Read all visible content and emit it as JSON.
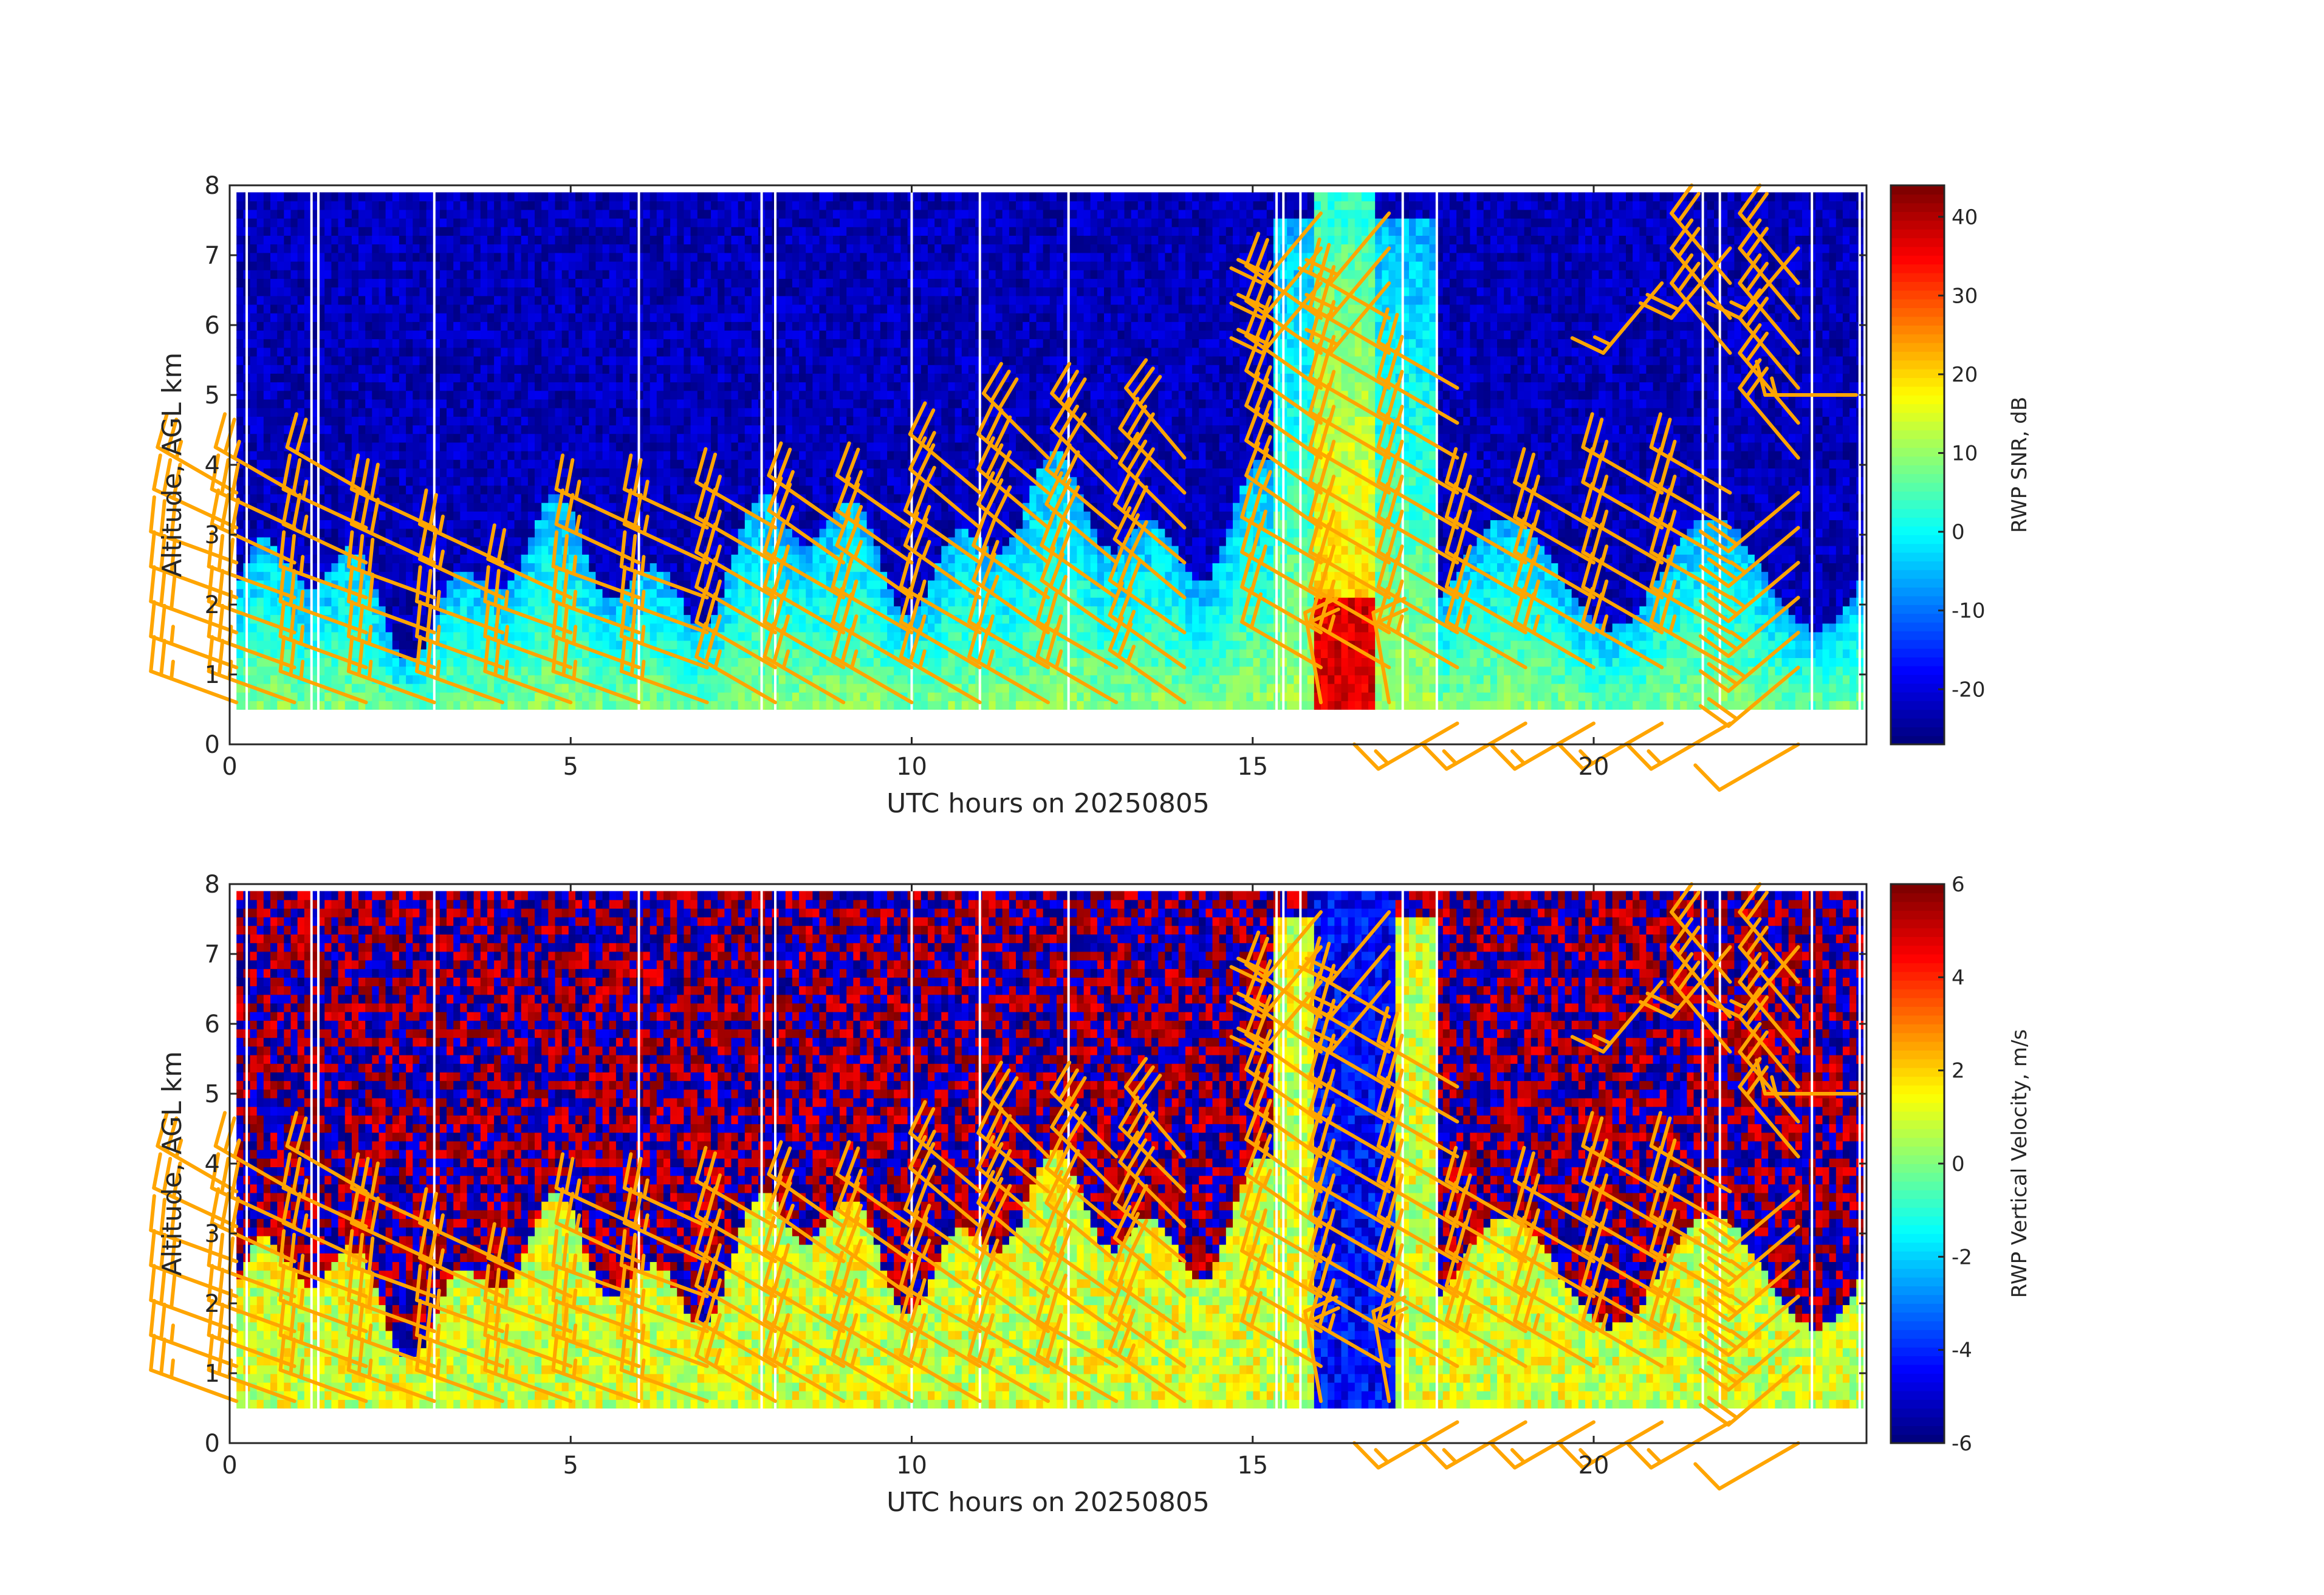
{
  "chart_data": [
    {
      "type": "heatmap",
      "panel": "top",
      "xlabel": "UTC hours on 20250805",
      "ylabel": "Altitude, AGL km",
      "xlim": [
        0,
        24
      ],
      "ylim": [
        0,
        8
      ],
      "xticks": [
        0,
        5,
        10,
        15,
        20
      ],
      "yticks": [
        0,
        1,
        2,
        3,
        4,
        5,
        6,
        7,
        8
      ],
      "data_altitude_range_km": [
        0.5,
        7.9
      ],
      "colorbar": {
        "label": "RWP SNR, dB",
        "range": [
          -27,
          44
        ],
        "ticks": [
          -20,
          -10,
          0,
          10,
          20,
          30,
          40
        ],
        "colormap": "jet"
      },
      "field": "snr",
      "overlay": "wind barbs"
    },
    {
      "type": "heatmap",
      "panel": "bottom",
      "xlabel": "UTC hours on 20250805",
      "ylabel": "Altitude, AGL km",
      "xlim": [
        0,
        24
      ],
      "ylim": [
        0,
        8
      ],
      "xticks": [
        0,
        5,
        10,
        15,
        20
      ],
      "yticks": [
        0,
        1,
        2,
        3,
        4,
        5,
        6,
        7,
        8
      ],
      "data_altitude_range_km": [
        0.5,
        7.9
      ],
      "colorbar": {
        "label": "RWP Vertical Velocity, m/s",
        "range": [
          -6,
          6
        ],
        "ticks": [
          -6,
          -4,
          -2,
          0,
          2,
          4,
          6
        ],
        "colormap": "jet"
      },
      "field": "velocity",
      "overlay": "wind barbs"
    }
  ],
  "data_gaps_hours": [
    0.25,
    1.2,
    1.3,
    3.0,
    6.0,
    7.8,
    8.0,
    10.0,
    11.0,
    12.3,
    15.35,
    15.45,
    15.7,
    17.2,
    17.7,
    21.6,
    21.85,
    23.2,
    23.9
  ],
  "barb_color": "#ffa500",
  "barb_columns": [
    {
      "t": 0.1,
      "levels": [
        {
          "h": 0.6,
          "spd": 25,
          "dir": 290
        },
        {
          "h": 1.1,
          "spd": 25,
          "dir": 290
        },
        {
          "h": 1.6,
          "spd": 30,
          "dir": 290
        },
        {
          "h": 2.1,
          "spd": 30,
          "dir": 290
        },
        {
          "h": 2.6,
          "spd": 30,
          "dir": 290
        },
        {
          "h": 3.1,
          "spd": 30,
          "dir": 295
        },
        {
          "h": 3.6,
          "spd": 25,
          "dir": 300
        }
      ]
    },
    {
      "t": 0.95,
      "levels": [
        {
          "h": 0.6,
          "spd": 25,
          "dir": 290
        },
        {
          "h": 1.1,
          "spd": 25,
          "dir": 290
        },
        {
          "h": 1.6,
          "spd": 25,
          "dir": 290
        },
        {
          "h": 2.1,
          "spd": 30,
          "dir": 290
        },
        {
          "h": 2.6,
          "spd": 30,
          "dir": 295
        },
        {
          "h": 3.1,
          "spd": 30,
          "dir": 295
        },
        {
          "h": 3.6,
          "spd": 25,
          "dir": 300
        }
      ]
    },
    {
      "t": 2.0,
      "levels": [
        {
          "h": 0.6,
          "spd": 25,
          "dir": 290
        },
        {
          "h": 1.1,
          "spd": 25,
          "dir": 290
        },
        {
          "h": 1.6,
          "spd": 25,
          "dir": 290
        },
        {
          "h": 2.1,
          "spd": 25,
          "dir": 290
        },
        {
          "h": 2.6,
          "spd": 25,
          "dir": 295
        },
        {
          "h": 3.1,
          "spd": 25,
          "dir": 295
        },
        {
          "h": 3.6,
          "spd": 20,
          "dir": 300
        }
      ]
    },
    {
      "t": 3.0,
      "levels": [
        {
          "h": 0.6,
          "spd": 25,
          "dir": 290
        },
        {
          "h": 1.1,
          "spd": 25,
          "dir": 290
        },
        {
          "h": 1.6,
          "spd": 30,
          "dir": 290
        },
        {
          "h": 2.1,
          "spd": 30,
          "dir": 290
        },
        {
          "h": 2.6,
          "spd": 30,
          "dir": 295
        },
        {
          "h": 3.1,
          "spd": 30,
          "dir": 295
        }
      ]
    },
    {
      "t": 4.0,
      "levels": [
        {
          "h": 0.6,
          "spd": 25,
          "dir": 290
        },
        {
          "h": 1.1,
          "spd": 25,
          "dir": 290
        },
        {
          "h": 1.6,
          "spd": 25,
          "dir": 290
        },
        {
          "h": 2.1,
          "spd": 25,
          "dir": 295
        },
        {
          "h": 2.6,
          "spd": 25,
          "dir": 295
        }
      ]
    },
    {
      "t": 5.0,
      "levels": [
        {
          "h": 0.6,
          "spd": 25,
          "dir": 290
        },
        {
          "h": 1.1,
          "spd": 25,
          "dir": 290
        },
        {
          "h": 1.6,
          "spd": 25,
          "dir": 290
        },
        {
          "h": 2.1,
          "spd": 20,
          "dir": 295
        }
      ]
    },
    {
      "t": 6.0,
      "levels": [
        {
          "h": 0.6,
          "spd": 25,
          "dir": 290
        },
        {
          "h": 1.1,
          "spd": 25,
          "dir": 290
        },
        {
          "h": 1.6,
          "spd": 25,
          "dir": 290
        },
        {
          "h": 2.1,
          "spd": 25,
          "dir": 290
        },
        {
          "h": 2.6,
          "spd": 25,
          "dir": 295
        },
        {
          "h": 3.1,
          "spd": 25,
          "dir": 295
        }
      ]
    },
    {
      "t": 7.0,
      "levels": [
        {
          "h": 0.6,
          "spd": 25,
          "dir": 290
        },
        {
          "h": 1.1,
          "spd": 25,
          "dir": 290
        },
        {
          "h": 1.6,
          "spd": 25,
          "dir": 290
        },
        {
          "h": 2.1,
          "spd": 25,
          "dir": 290
        },
        {
          "h": 2.6,
          "spd": 25,
          "dir": 295
        },
        {
          "h": 3.1,
          "spd": 25,
          "dir": 295
        }
      ]
    },
    {
      "t": 8.0,
      "levels": [
        {
          "h": 0.6,
          "spd": 25,
          "dir": 300
        },
        {
          "h": 1.1,
          "spd": 25,
          "dir": 300
        },
        {
          "h": 1.6,
          "spd": 25,
          "dir": 300
        },
        {
          "h": 2.1,
          "spd": 25,
          "dir": 300
        },
        {
          "h": 2.6,
          "spd": 25,
          "dir": 300
        },
        {
          "h": 3.1,
          "spd": 25,
          "dir": 300
        }
      ]
    },
    {
      "t": 9.0,
      "levels": [
        {
          "h": 0.6,
          "spd": 25,
          "dir": 300
        },
        {
          "h": 1.1,
          "spd": 25,
          "dir": 300
        },
        {
          "h": 1.6,
          "spd": 25,
          "dir": 300
        },
        {
          "h": 2.1,
          "spd": 25,
          "dir": 300
        },
        {
          "h": 2.6,
          "spd": 25,
          "dir": 305
        },
        {
          "h": 3.1,
          "spd": 25,
          "dir": 305
        }
      ]
    },
    {
      "t": 10.0,
      "levels": [
        {
          "h": 0.6,
          "spd": 25,
          "dir": 300
        },
        {
          "h": 1.1,
          "spd": 25,
          "dir": 300
        },
        {
          "h": 1.6,
          "spd": 25,
          "dir": 300
        },
        {
          "h": 2.1,
          "spd": 25,
          "dir": 305
        },
        {
          "h": 2.6,
          "spd": 25,
          "dir": 305
        },
        {
          "h": 3.1,
          "spd": 25,
          "dir": 305
        }
      ]
    },
    {
      "t": 11.0,
      "levels": [
        {
          "h": 0.6,
          "spd": 25,
          "dir": 300
        },
        {
          "h": 1.1,
          "spd": 25,
          "dir": 300
        },
        {
          "h": 1.6,
          "spd": 25,
          "dir": 300
        },
        {
          "h": 2.1,
          "spd": 25,
          "dir": 305
        },
        {
          "h": 2.6,
          "spd": 25,
          "dir": 305
        },
        {
          "h": 3.1,
          "spd": 25,
          "dir": 310
        },
        {
          "h": 3.6,
          "spd": 25,
          "dir": 310
        }
      ]
    },
    {
      "t": 12.0,
      "levels": [
        {
          "h": 0.6,
          "spd": 25,
          "dir": 300
        },
        {
          "h": 1.1,
          "spd": 25,
          "dir": 300
        },
        {
          "h": 1.6,
          "spd": 25,
          "dir": 305
        },
        {
          "h": 2.1,
          "spd": 25,
          "dir": 305
        },
        {
          "h": 2.6,
          "spd": 30,
          "dir": 310
        },
        {
          "h": 3.1,
          "spd": 30,
          "dir": 310
        },
        {
          "h": 3.6,
          "spd": 30,
          "dir": 310
        },
        {
          "h": 4.1,
          "spd": 30,
          "dir": 315
        }
      ]
    },
    {
      "t": 13.0,
      "levels": [
        {
          "h": 0.6,
          "spd": 25,
          "dir": 300
        },
        {
          "h": 1.1,
          "spd": 25,
          "dir": 300
        },
        {
          "h": 1.6,
          "spd": 25,
          "dir": 305
        },
        {
          "h": 2.1,
          "spd": 30,
          "dir": 305
        },
        {
          "h": 2.6,
          "spd": 30,
          "dir": 310
        },
        {
          "h": 3.1,
          "spd": 30,
          "dir": 310
        },
        {
          "h": 3.6,
          "spd": 30,
          "dir": 315
        },
        {
          "h": 4.1,
          "spd": 30,
          "dir": 315
        }
      ]
    },
    {
      "t": 14.0,
      "levels": [
        {
          "h": 0.6,
          "spd": 25,
          "dir": 305
        },
        {
          "h": 1.1,
          "spd": 25,
          "dir": 305
        },
        {
          "h": 1.6,
          "spd": 30,
          "dir": 305
        },
        {
          "h": 2.1,
          "spd": 30,
          "dir": 310
        },
        {
          "h": 2.6,
          "spd": 30,
          "dir": 310
        },
        {
          "h": 3.1,
          "spd": 30,
          "dir": 315
        },
        {
          "h": 3.6,
          "spd": 30,
          "dir": 315
        },
        {
          "h": 4.1,
          "spd": 30,
          "dir": 320
        }
      ]
    },
    {
      "t": 16.0,
      "levels": [
        {
          "h": 0.6,
          "spd": 20,
          "dir": 350
        },
        {
          "h": 1.1,
          "spd": 20,
          "dir": 300
        },
        {
          "h": 1.6,
          "spd": 20,
          "dir": 300
        },
        {
          "h": 2.1,
          "spd": 25,
          "dir": 300
        },
        {
          "h": 2.6,
          "spd": 25,
          "dir": 300
        },
        {
          "h": 3.1,
          "spd": 25,
          "dir": 305
        },
        {
          "h": 3.6,
          "spd": 25,
          "dir": 305
        },
        {
          "h": 4.1,
          "spd": 25,
          "dir": 305
        },
        {
          "h": 4.6,
          "spd": 25,
          "dir": 305
        },
        {
          "h": 5.1,
          "spd": 25,
          "dir": 305
        },
        {
          "h": 5.6,
          "spd": 25,
          "dir": 305
        },
        {
          "h": 6.1,
          "spd": 25,
          "dir": 305
        },
        {
          "h": 6.6,
          "spd": 20,
          "dir": 220
        },
        {
          "h": 7.1,
          "spd": 20,
          "dir": 220
        },
        {
          "h": 7.6,
          "spd": 20,
          "dir": 220
        }
      ]
    },
    {
      "t": 17.0,
      "levels": [
        {
          "h": 0.6,
          "spd": 20,
          "dir": 350
        },
        {
          "h": 1.1,
          "spd": 25,
          "dir": 300
        },
        {
          "h": 1.6,
          "spd": 25,
          "dir": 300
        },
        {
          "h": 2.1,
          "spd": 25,
          "dir": 300
        },
        {
          "h": 2.6,
          "spd": 25,
          "dir": 300
        },
        {
          "h": 3.1,
          "spd": 25,
          "dir": 300
        },
        {
          "h": 3.6,
          "spd": 25,
          "dir": 300
        },
        {
          "h": 4.1,
          "spd": 25,
          "dir": 300
        },
        {
          "h": 4.6,
          "spd": 25,
          "dir": 300
        },
        {
          "h": 5.1,
          "spd": 25,
          "dir": 300
        },
        {
          "h": 5.6,
          "spd": 25,
          "dir": 300
        },
        {
          "h": 6.1,
          "spd": 25,
          "dir": 300
        },
        {
          "h": 6.6,
          "spd": 20,
          "dir": 220
        },
        {
          "h": 7.1,
          "spd": 20,
          "dir": 220
        },
        {
          "h": 7.6,
          "spd": 20,
          "dir": 220
        }
      ]
    },
    {
      "t": 18.0,
      "levels": [
        {
          "h": 0.3,
          "spd": 15,
          "dir": 240
        },
        {
          "h": 1.1,
          "spd": 25,
          "dir": 300
        },
        {
          "h": 1.6,
          "spd": 25,
          "dir": 300
        },
        {
          "h": 2.1,
          "spd": 25,
          "dir": 300
        },
        {
          "h": 2.6,
          "spd": 25,
          "dir": 300
        },
        {
          "h": 3.1,
          "spd": 25,
          "dir": 300
        },
        {
          "h": 3.6,
          "spd": 25,
          "dir": 300
        },
        {
          "h": 4.1,
          "spd": 25,
          "dir": 300
        },
        {
          "h": 4.6,
          "spd": 25,
          "dir": 300
        },
        {
          "h": 5.1,
          "spd": 25,
          "dir": 300
        }
      ]
    },
    {
      "t": 19.0,
      "levels": [
        {
          "h": 0.3,
          "spd": 15,
          "dir": 240
        },
        {
          "h": 1.1,
          "spd": 25,
          "dir": 300
        },
        {
          "h": 1.6,
          "spd": 25,
          "dir": 300
        },
        {
          "h": 2.1,
          "spd": 25,
          "dir": 300
        },
        {
          "h": 2.6,
          "spd": 25,
          "dir": 300
        },
        {
          "h": 3.1,
          "spd": 25,
          "dir": 300
        }
      ]
    },
    {
      "t": 20.0,
      "levels": [
        {
          "h": 0.3,
          "spd": 15,
          "dir": 240
        },
        {
          "h": 1.1,
          "spd": 25,
          "dir": 300
        },
        {
          "h": 1.6,
          "spd": 25,
          "dir": 300
        },
        {
          "h": 2.1,
          "spd": 25,
          "dir": 300
        },
        {
          "h": 2.6,
          "spd": 25,
          "dir": 300
        },
        {
          "h": 3.1,
          "spd": 25,
          "dir": 300
        }
      ]
    },
    {
      "t": 21.0,
      "levels": [
        {
          "h": 0.3,
          "spd": 15,
          "dir": 240
        },
        {
          "h": 1.1,
          "spd": 25,
          "dir": 300
        },
        {
          "h": 1.6,
          "spd": 25,
          "dir": 300
        },
        {
          "h": 2.1,
          "spd": 25,
          "dir": 300
        },
        {
          "h": 2.6,
          "spd": 25,
          "dir": 300
        },
        {
          "h": 3.1,
          "spd": 25,
          "dir": 300
        },
        {
          "h": 3.6,
          "spd": 25,
          "dir": 300
        },
        {
          "h": 6.6,
          "spd": 15,
          "dir": 220
        }
      ]
    },
    {
      "t": 22.0,
      "levels": [
        {
          "h": 0.3,
          "spd": 15,
          "dir": 240
        },
        {
          "h": 1.1,
          "spd": 25,
          "dir": 300
        },
        {
          "h": 1.6,
          "spd": 25,
          "dir": 300
        },
        {
          "h": 2.1,
          "spd": 25,
          "dir": 300
        },
        {
          "h": 2.6,
          "spd": 25,
          "dir": 300
        },
        {
          "h": 3.1,
          "spd": 25,
          "dir": 300
        },
        {
          "h": 3.6,
          "spd": 25,
          "dir": 300
        },
        {
          "h": 5.6,
          "spd": 20,
          "dir": 320
        },
        {
          "h": 6.1,
          "spd": 20,
          "dir": 320
        },
        {
          "h": 6.6,
          "spd": 20,
          "dir": 320
        },
        {
          "h": 7.1,
          "spd": 20,
          "dir": 220
        }
      ]
    },
    {
      "t": 23.0,
      "levels": [
        {
          "h": 0.0,
          "spd": 10,
          "dir": 240
        },
        {
          "h": 1.1,
          "spd": 20,
          "dir": 230
        },
        {
          "h": 1.6,
          "spd": 25,
          "dir": 230
        },
        {
          "h": 2.1,
          "spd": 25,
          "dir": 230
        },
        {
          "h": 2.6,
          "spd": 25,
          "dir": 230
        },
        {
          "h": 3.1,
          "spd": 25,
          "dir": 230
        },
        {
          "h": 3.6,
          "spd": 20,
          "dir": 230
        },
        {
          "h": 4.1,
          "spd": 20,
          "dir": 320
        },
        {
          "h": 4.6,
          "spd": 20,
          "dir": 320
        },
        {
          "h": 5.1,
          "spd": 20,
          "dir": 320
        },
        {
          "h": 5.6,
          "spd": 20,
          "dir": 320
        },
        {
          "h": 6.1,
          "spd": 20,
          "dir": 320
        },
        {
          "h": 6.6,
          "spd": 20,
          "dir": 320
        },
        {
          "h": 7.1,
          "spd": 15,
          "dir": 220
        }
      ]
    },
    {
      "t": 23.85,
      "levels": [
        {
          "h": 5.0,
          "spd": 15,
          "dir": 270
        }
      ]
    }
  ]
}
